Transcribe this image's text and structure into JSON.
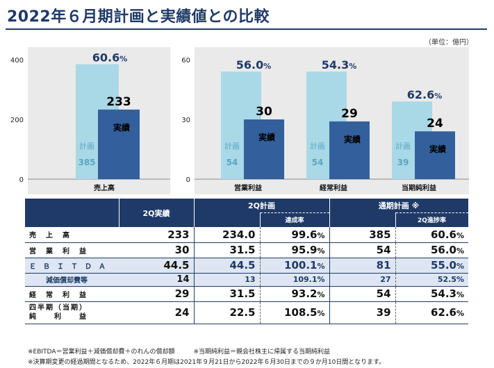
{
  "title": "2022年６月期計画と実績値との比較",
  "unit": "（単位：億円）",
  "plan_label": "計画",
  "actual_label": "実績",
  "chart_data": [
    {
      "type": "bar",
      "categories": [
        "売上高"
      ],
      "series": [
        {
          "name": "計画",
          "values": [
            385
          ]
        },
        {
          "name": "実績",
          "values": [
            233
          ]
        }
      ],
      "achievement_pct": [
        "60.6"
      ],
      "ylim": [
        0,
        400
      ],
      "yticks": [
        "0",
        "200",
        "400"
      ]
    },
    {
      "type": "bar",
      "categories": [
        "営業利益",
        "経常利益",
        "当期純利益"
      ],
      "series": [
        {
          "name": "計画",
          "values": [
            54,
            54,
            39
          ]
        },
        {
          "name": "実績",
          "values": [
            30,
            29,
            24
          ]
        }
      ],
      "achievement_pct": [
        "56.0",
        "54.3",
        "62.6"
      ],
      "ylim": [
        0,
        60
      ],
      "yticks": [
        "0",
        "30",
        "60"
      ]
    }
  ],
  "table": {
    "headers": {
      "q2_actual": "2Q実績",
      "q2_plan": "2Q計画",
      "achievement_rate": "達成率",
      "full_year_plan": "通期計画 ※",
      "q2_progress": "2Q進捗率"
    },
    "rows": [
      {
        "label": "売　上　高",
        "q2_actual": "233",
        "q2_plan": "234.0",
        "rate": "99.6",
        "fy_plan": "385",
        "progress": "60.6"
      },
      {
        "label": "営　業　利　益",
        "q2_actual": "30",
        "q2_plan": "31.5",
        "rate": "95.9",
        "fy_plan": "54",
        "progress": "56.0"
      },
      {
        "label": "Ｅ　Ｂ　Ｉ　Ｔ　Ｄ　Ａ",
        "q2_actual": "44.5",
        "q2_plan": "44.5",
        "rate": "100.1",
        "fy_plan": "81",
        "progress": "55.0"
      },
      {
        "label": "減価償却費等",
        "q2_actual": "14",
        "q2_plan": "13",
        "rate": "109.1",
        "fy_plan": "27",
        "progress": "52.5"
      },
      {
        "label": "経　常　利　益",
        "q2_actual": "29",
        "q2_plan": "31.5",
        "rate": "93.2",
        "fy_plan": "54",
        "progress": "54.3"
      },
      {
        "label_line1": "四半期（当期）",
        "label_line2": "純　　利　　益",
        "q2_actual": "24",
        "q2_plan": "22.5",
        "rate": "108.5",
        "fy_plan": "39",
        "progress": "62.6"
      }
    ],
    "percent_sign": "%"
  },
  "notes": [
    "※EBITDA＝営業利益＋減価償却費＋のれんの償却額　　　※当期純利益＝親会社株主に帰属する当期純利益",
    "※決算期変更の経過期間となるため、2022年６月期は2021年９月21日から2022年６月30日までの９か月10日間となります。"
  ],
  "colors": {
    "navy": "#1f3a68",
    "plan_bar": "#a9d8e6",
    "actual_bar": "#33609c",
    "panel_bg": "#eaeaea",
    "highlight_row": "#dde6f2"
  }
}
